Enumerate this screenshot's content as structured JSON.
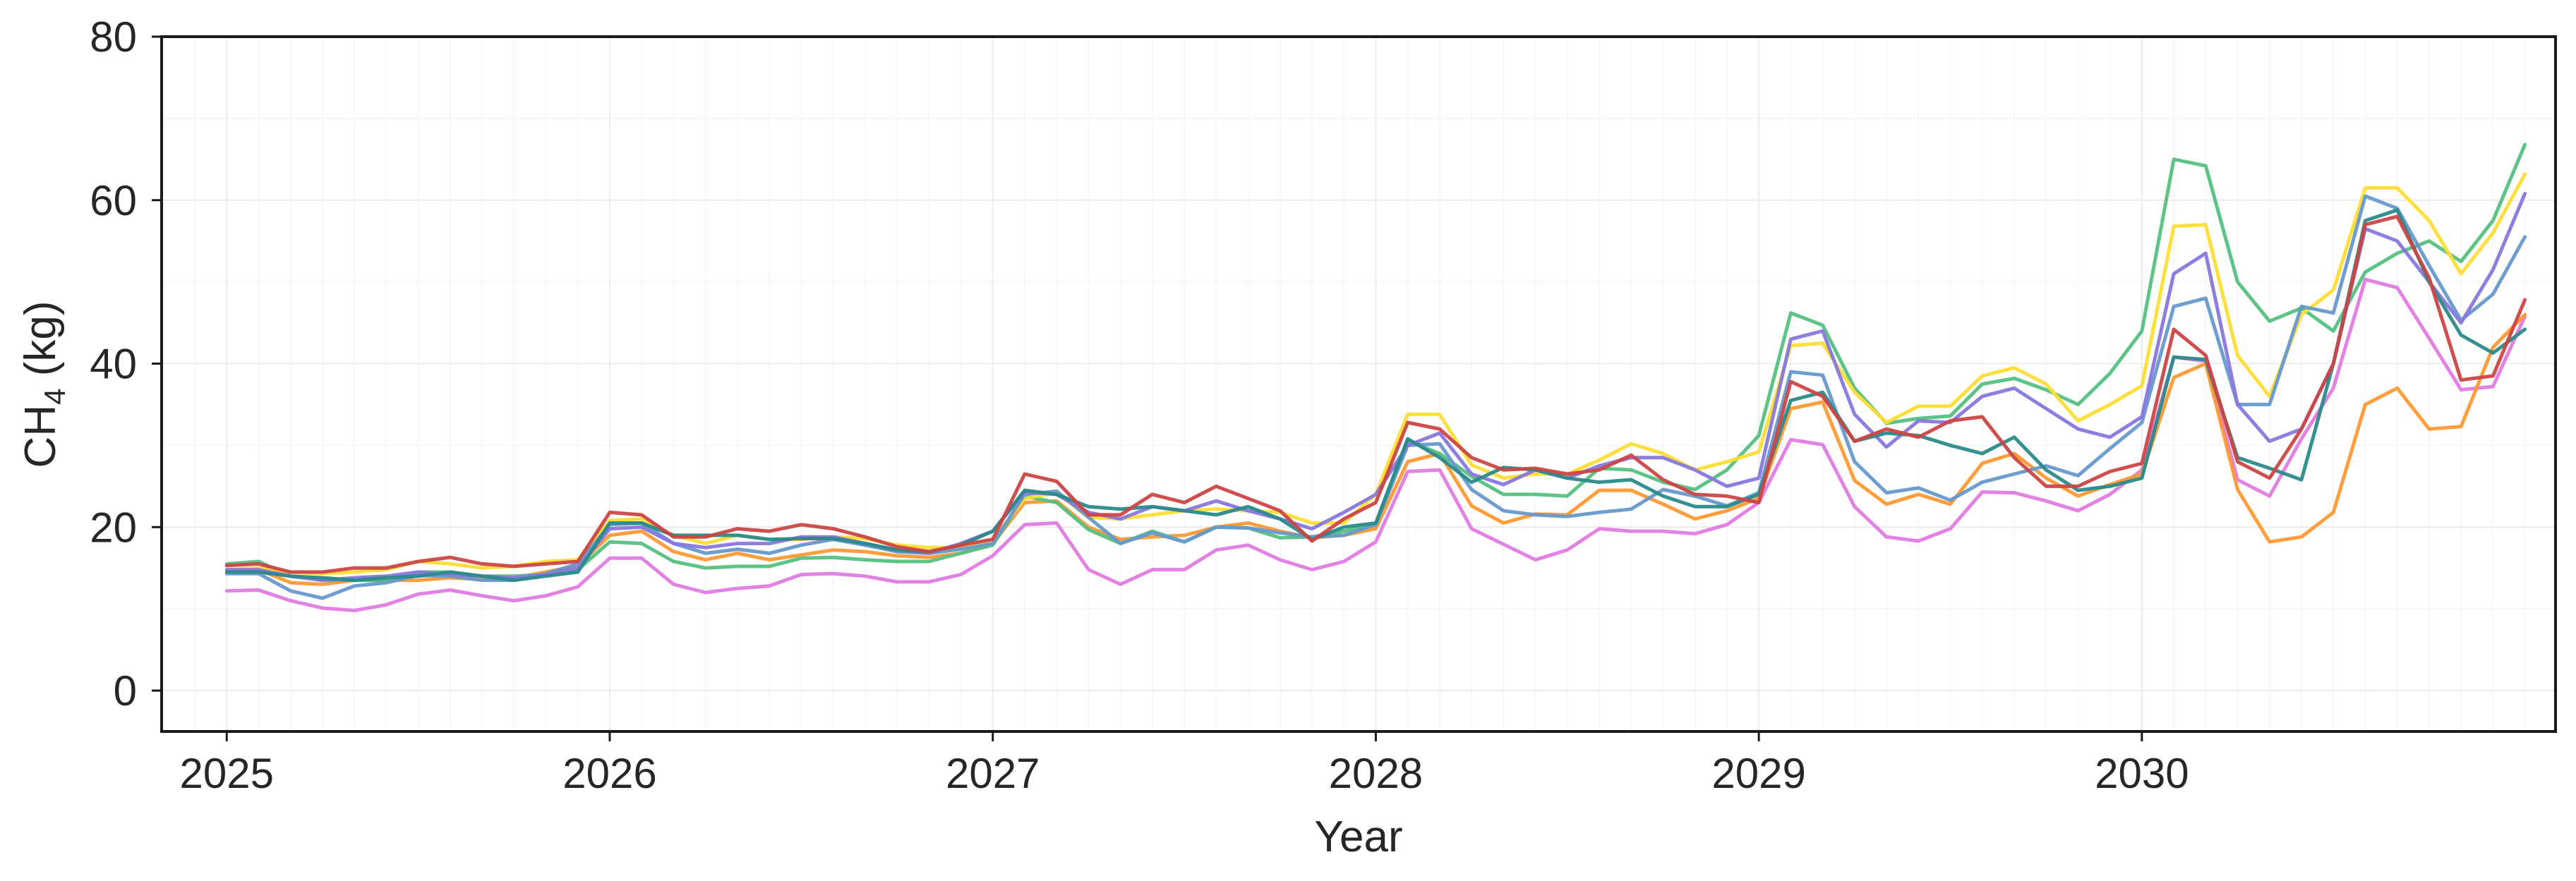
{
  "chart_data": {
    "type": "line",
    "title": "",
    "xlabel": "Year",
    "ylabel": "CH₄ (kg)",
    "ylabel_main": "CH",
    "ylabel_sub": "4",
    "ylabel_unit": " (kg)",
    "xlim": [
      2024.83,
      2031.08
    ],
    "ylim": [
      -5,
      80
    ],
    "xticks": [
      2025,
      2026,
      2027,
      2028,
      2029,
      2030
    ],
    "xtick_labels": [
      "2025",
      "2026",
      "2027",
      "2028",
      "2029",
      "2030"
    ],
    "yticks": [
      0,
      20,
      40,
      60,
      80
    ],
    "ytick_labels": [
      "0",
      "20",
      "40",
      "60",
      "80"
    ],
    "grid": true,
    "legend": "none",
    "x_start_year": 2025,
    "x_step_months": 1,
    "series": [
      {
        "color": "#e07be0",
        "values": [
          12.2,
          12.3,
          11.0,
          10.1,
          9.8,
          10.5,
          11.8,
          12.3,
          11.6,
          11.0,
          11.6,
          12.7,
          16.2,
          16.2,
          13.0,
          12.0,
          12.5,
          12.8,
          14.2,
          14.3,
          14.0,
          13.3,
          13.3,
          14.2,
          16.5,
          20.3,
          20.5,
          14.8,
          13.0,
          14.8,
          14.8,
          17.2,
          17.8,
          16.0,
          14.8,
          15.8,
          18.2,
          26.8,
          27.0,
          19.8,
          17.9,
          16.0,
          17.2,
          19.8,
          19.5,
          19.5,
          19.2,
          20.3,
          23.0,
          30.7,
          30.1,
          22.5,
          18.8,
          18.3,
          19.8,
          24.3,
          24.2,
          23.2,
          22.0,
          24.0,
          27.0,
          40.8,
          40.3,
          25.8,
          23.8,
          30.8,
          37.0,
          50.3,
          49.3,
          43.1,
          36.8,
          37.2,
          45.8
        ]
      },
      {
        "color": "#ff9933",
        "values": [
          14.5,
          14.8,
          13.2,
          13.0,
          13.5,
          13.5,
          13.5,
          13.8,
          13.6,
          13.8,
          14.5,
          15.3,
          19.0,
          19.5,
          17.0,
          16.0,
          16.8,
          16.0,
          16.6,
          17.2,
          17.0,
          16.5,
          16.3,
          16.8,
          18.0,
          23.0,
          23.2,
          20.0,
          18.5,
          18.8,
          19.0,
          20.0,
          20.5,
          19.5,
          18.7,
          19.0,
          19.8,
          28.0,
          29.0,
          22.6,
          20.5,
          21.6,
          21.5,
          24.5,
          24.5,
          22.8,
          21.0,
          22.0,
          23.5,
          34.5,
          35.3,
          25.7,
          22.8,
          24.0,
          22.8,
          27.8,
          29.0,
          26.0,
          23.8,
          25.2,
          26.5,
          38.3,
          40.0,
          24.6,
          18.2,
          18.8,
          21.8,
          35.0,
          37.0,
          32.0,
          32.3,
          42.0,
          46.0
        ]
      },
      {
        "color": "#55c080",
        "values": [
          15.5,
          15.8,
          14.0,
          13.5,
          13.5,
          13.5,
          14.5,
          14.5,
          14.0,
          14.0,
          14.2,
          14.8,
          18.2,
          18.0,
          15.8,
          15.0,
          15.2,
          15.2,
          16.2,
          16.3,
          16.0,
          15.8,
          15.8,
          16.8,
          17.8,
          23.8,
          23.0,
          19.7,
          18.0,
          19.5,
          18.2,
          20.0,
          19.9,
          18.7,
          18.8,
          19.5,
          20.3,
          30.6,
          29.0,
          26.2,
          24.0,
          24.0,
          23.8,
          27.2,
          27.0,
          25.5,
          24.6,
          27.0,
          31.2,
          46.2,
          44.7,
          37.0,
          32.7,
          33.3,
          33.6,
          37.5,
          38.2,
          36.8,
          35.0,
          38.8,
          44.0,
          65.0,
          64.2,
          50.0,
          45.2,
          46.8,
          44.0,
          51.2,
          53.5,
          55.0,
          52.5,
          57.5,
          66.8
        ]
      },
      {
        "color": "#ffdd33",
        "values": [
          14.8,
          15.0,
          14.5,
          14.3,
          14.5,
          14.8,
          15.8,
          15.5,
          15.0,
          15.2,
          15.8,
          16.0,
          20.8,
          21.0,
          19.0,
          18.0,
          19.0,
          18.5,
          18.5,
          18.8,
          18.6,
          17.8,
          17.5,
          17.5,
          18.5,
          23.5,
          24.2,
          21.2,
          21.0,
          21.5,
          22.0,
          22.2,
          22.0,
          21.8,
          20.5,
          20.5,
          24.0,
          33.8,
          33.8,
          27.6,
          26.0,
          26.5,
          26.5,
          28.2,
          30.2,
          29.0,
          27.0,
          28.0,
          29.2,
          42.2,
          42.5,
          36.5,
          32.8,
          34.8,
          34.8,
          38.5,
          39.5,
          37.5,
          33.0,
          35.0,
          37.3,
          56.8,
          57.0,
          41.0,
          36.0,
          46.0,
          49.0,
          61.5,
          61.5,
          57.5,
          51.0,
          56.0,
          63.2
        ]
      },
      {
        "color": "#6699cc",
        "values": [
          14.3,
          14.3,
          12.2,
          11.3,
          12.8,
          13.2,
          14.1,
          14.0,
          13.5,
          13.5,
          14.3,
          15.5,
          20.3,
          20.5,
          18.0,
          16.8,
          17.3,
          16.8,
          17.8,
          18.5,
          17.8,
          17.0,
          16.8,
          17.3,
          18.0,
          24.0,
          24.4,
          21.2,
          18.0,
          19.3,
          18.2,
          20.0,
          19.9,
          19.3,
          18.8,
          19.0,
          20.3,
          30.0,
          30.2,
          24.6,
          22.0,
          21.5,
          21.3,
          21.8,
          22.2,
          24.6,
          23.8,
          22.6,
          24.2,
          39.0,
          38.6,
          28.0,
          24.2,
          24.8,
          23.3,
          25.5,
          26.5,
          27.5,
          26.3,
          29.6,
          32.8,
          47.0,
          48.0,
          35.0,
          35.0,
          47.0,
          46.2,
          60.5,
          59.0,
          52.0,
          45.3,
          48.5,
          55.5
        ]
      },
      {
        "color": "#8877dd",
        "values": [
          14.8,
          14.8,
          14.0,
          13.5,
          13.8,
          14.0,
          14.5,
          14.2,
          14.0,
          13.8,
          14.2,
          15.0,
          19.8,
          20.0,
          18.0,
          17.5,
          18.0,
          18.0,
          18.8,
          18.8,
          18.0,
          17.2,
          16.8,
          18.0,
          19.5,
          24.3,
          24.0,
          21.8,
          21.0,
          22.5,
          22.0,
          23.2,
          22.0,
          21.0,
          19.8,
          21.8,
          24.0,
          30.0,
          31.5,
          26.5,
          25.2,
          27.0,
          26.0,
          27.5,
          28.5,
          28.5,
          27.0,
          25.0,
          26.0,
          43.0,
          44.0,
          33.8,
          29.8,
          33.0,
          32.8,
          36.0,
          37.0,
          34.5,
          32.0,
          31.0,
          33.5,
          51.0,
          53.5,
          35.0,
          30.5,
          32.0,
          40.0,
          56.5,
          55.0,
          50.0,
          45.0,
          51.5,
          60.8
        ]
      },
      {
        "color": "#2a8a8a",
        "values": [
          14.5,
          14.5,
          14.0,
          13.8,
          13.5,
          13.8,
          14.0,
          14.5,
          14.0,
          13.5,
          14.0,
          14.5,
          20.5,
          20.5,
          19.0,
          19.0,
          19.0,
          18.5,
          18.6,
          18.6,
          18.0,
          17.2,
          17.0,
          17.8,
          19.5,
          24.5,
          24.0,
          22.5,
          22.2,
          22.5,
          22.0,
          21.5,
          22.5,
          21.0,
          18.5,
          20.0,
          20.5,
          30.8,
          28.5,
          25.5,
          27.3,
          27.0,
          26.0,
          25.5,
          25.8,
          23.8,
          22.5,
          22.5,
          24.0,
          35.5,
          36.5,
          30.5,
          31.5,
          31.2,
          30.0,
          29.0,
          31.0,
          27.0,
          24.5,
          25.0,
          26.0,
          40.8,
          40.5,
          28.5,
          27.2,
          25.8,
          40.0,
          57.5,
          58.8,
          50.0,
          43.5,
          41.3,
          44.2
        ]
      },
      {
        "color": "#cc4444",
        "values": [
          15.3,
          15.5,
          14.5,
          14.5,
          15.0,
          15.0,
          15.8,
          16.3,
          15.5,
          15.2,
          15.5,
          15.8,
          21.8,
          21.5,
          18.8,
          18.8,
          19.8,
          19.5,
          20.3,
          19.8,
          18.8,
          17.6,
          17.0,
          17.8,
          18.5,
          26.5,
          25.6,
          21.5,
          21.5,
          24.0,
          23.0,
          25.0,
          23.5,
          22.0,
          18.3,
          21.0,
          23.0,
          32.8,
          32.0,
          28.5,
          27.0,
          27.2,
          26.5,
          27.0,
          28.8,
          25.8,
          24.0,
          23.8,
          23.0,
          37.8,
          36.0,
          30.5,
          32.0,
          31.0,
          33.0,
          33.5,
          28.5,
          25.0,
          25.0,
          26.8,
          27.8,
          44.2,
          41.0,
          28.0,
          26.0,
          32.0,
          40.0,
          57.0,
          58.0,
          50.5,
          38.0,
          38.5,
          47.8
        ]
      }
    ]
  }
}
